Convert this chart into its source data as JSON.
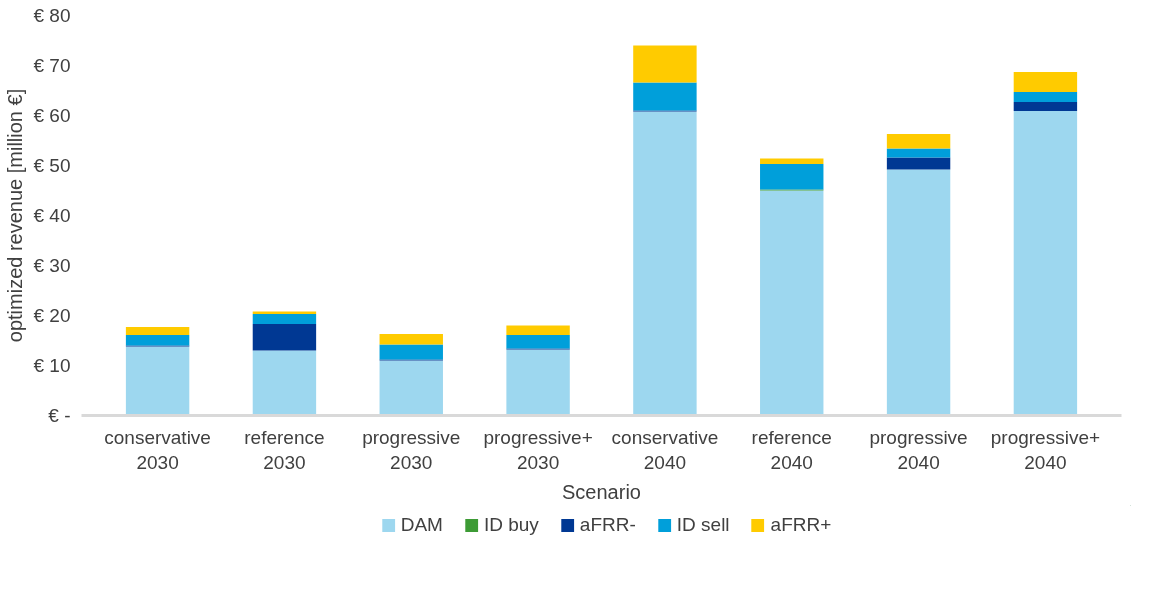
{
  "chart_data": {
    "type": "bar",
    "stacked": true,
    "xlabel": "Scenario",
    "ylabel": "optimized revenue [million €]",
    "categories": [
      "conservative\n2030",
      "reference\n2030",
      "progressive\n2030",
      "progressive+\n2030",
      "conservative\n2040",
      "reference\n2040",
      "progressive\n2040",
      "progressive+\n2040"
    ],
    "series": [
      {
        "name": "DAM",
        "color": "#9dd7ef",
        "values": [
          13.8,
          13.0,
          11.0,
          13.2,
          60.8,
          45.0,
          49.2,
          60.9
        ]
      },
      {
        "name": "ID buy",
        "color": "#3d9b35",
        "values": [
          0,
          0,
          0,
          0,
          0,
          0.2,
          0,
          0
        ]
      },
      {
        "name": "aFRR-",
        "color": "#003893",
        "values": [
          0.2,
          5.3,
          0.2,
          0.2,
          0.2,
          0,
          2.4,
          1.8
        ]
      },
      {
        "name": "ID sell",
        "color": "#009fda",
        "values": [
          2.1,
          2.0,
          3.0,
          2.7,
          5.6,
          5.1,
          1.8,
          2.0
        ]
      },
      {
        "name": "aFRR+",
        "color": "#ffcb00",
        "values": [
          1.6,
          0.5,
          2.1,
          1.9,
          7.4,
          1.1,
          2.9,
          4.0
        ]
      }
    ],
    "ylim": [
      0,
      80
    ],
    "yticks": [
      {
        "value": 0,
        "label": "€ -"
      },
      {
        "value": 10,
        "label": "€ 10"
      },
      {
        "value": 20,
        "label": "€ 20"
      },
      {
        "value": 30,
        "label": "€ 30"
      },
      {
        "value": 40,
        "label": "€ 40"
      },
      {
        "value": 50,
        "label": "€ 50"
      },
      {
        "value": 60,
        "label": "€ 60"
      },
      {
        "value": 70,
        "label": "€ 70"
      },
      {
        "value": 80,
        "label": "€ 80"
      }
    ],
    "grid": false,
    "legend": "bottom"
  }
}
